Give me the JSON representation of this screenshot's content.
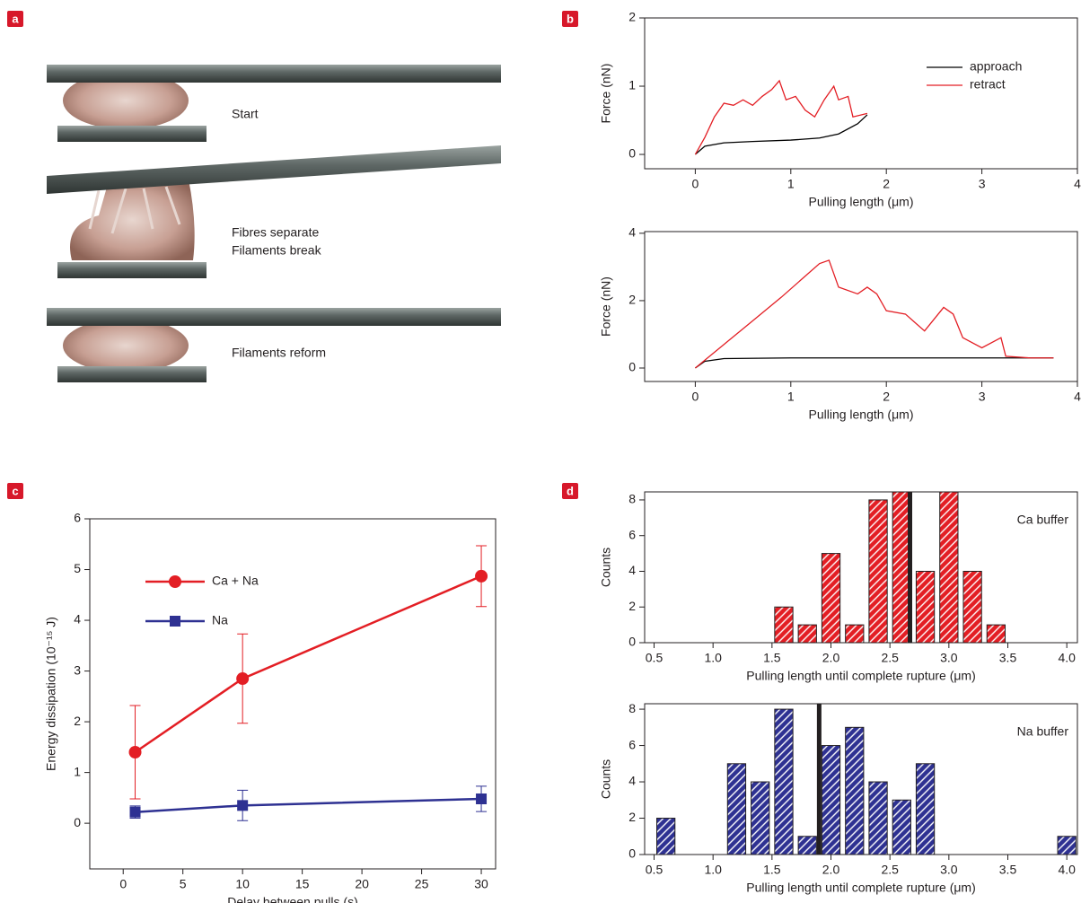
{
  "panels": [
    "a",
    "b",
    "c",
    "d"
  ],
  "diagram": {
    "captions": [
      "Start",
      "Fibres separate",
      "Filaments break",
      "Filaments reform"
    ]
  },
  "chart_data": [
    {
      "type": "line",
      "xlabel": "Pulling length (μm)",
      "ylabel": "Force (nN)",
      "xlim": [
        -0.53,
        4
      ],
      "xticks": [
        0,
        1,
        2,
        3,
        4
      ],
      "ylim": [
        -0.21,
        2
      ],
      "yticks": [
        0,
        1,
        2
      ],
      "legend": "upper right",
      "series": [
        {
          "name": "approach",
          "color": "#000000",
          "x": [
            0,
            0.1,
            0.3,
            0.6,
            1.0,
            1.3,
            1.5,
            1.7,
            1.8
          ],
          "values": [
            0,
            0.12,
            0.17,
            0.19,
            0.21,
            0.24,
            0.3,
            0.45,
            0.58
          ]
        },
        {
          "name": "retract",
          "color": "#e31e24",
          "x": [
            0,
            0.1,
            0.2,
            0.3,
            0.4,
            0.5,
            0.6,
            0.7,
            0.8,
            0.88,
            0.95,
            1.05,
            1.15,
            1.25,
            1.35,
            1.45,
            1.5,
            1.6,
            1.65,
            1.8
          ],
          "values": [
            0,
            0.25,
            0.55,
            0.75,
            0.72,
            0.8,
            0.72,
            0.85,
            0.95,
            1.08,
            0.8,
            0.85,
            0.65,
            0.55,
            0.8,
            1.0,
            0.8,
            0.85,
            0.55,
            0.6
          ]
        }
      ]
    },
    {
      "type": "line",
      "xlabel": "Pulling length (μm)",
      "ylabel": "Force (nN)",
      "xlim": [
        -0.53,
        4
      ],
      "xticks": [
        0,
        1,
        2,
        3,
        4
      ],
      "ylim": [
        -0.4,
        4.05
      ],
      "yticks": [
        0,
        2,
        4
      ],
      "series": [
        {
          "color": "#000000",
          "x": [
            0,
            0.1,
            0.3,
            1,
            2,
            3,
            3.5,
            3.75
          ],
          "values": [
            0,
            0.2,
            0.28,
            0.3,
            0.3,
            0.3,
            0.3,
            0.3
          ]
        },
        {
          "color": "#e31e24",
          "x": [
            0,
            0.3,
            0.6,
            0.9,
            1.1,
            1.3,
            1.4,
            1.5,
            1.7,
            1.8,
            1.9,
            2.0,
            2.2,
            2.4,
            2.6,
            2.7,
            2.8,
            3.0,
            3.2,
            3.25,
            3.5,
            3.75
          ],
          "values": [
            0,
            0.7,
            1.4,
            2.1,
            2.6,
            3.1,
            3.2,
            2.4,
            2.2,
            2.4,
            2.2,
            1.7,
            1.6,
            1.1,
            1.8,
            1.6,
            0.9,
            0.6,
            0.9,
            0.35,
            0.3,
            0.3
          ]
        }
      ]
    },
    {
      "type": "line",
      "xlabel": "Delay between pulls (s)",
      "ylabel": "Energy dissipation (10⁻¹⁵ J)",
      "xlim": [
        -2.8,
        31.2
      ],
      "xticks": [
        0,
        5,
        10,
        15,
        20,
        25,
        30
      ],
      "ylim": [
        -0.9,
        6
      ],
      "yticks": [
        0,
        1,
        2,
        3,
        4,
        5,
        6
      ],
      "legend": "upper left",
      "series": [
        {
          "name": "Ca + Na",
          "color": "#e31e24",
          "marker": "circle",
          "x": [
            1,
            10,
            30
          ],
          "values": [
            1.4,
            2.85,
            4.87
          ],
          "errors": [
            0.92,
            0.88,
            0.6
          ]
        },
        {
          "name": "Na",
          "color": "#2e3192",
          "marker": "square",
          "x": [
            1,
            10,
            30
          ],
          "values": [
            0.22,
            0.35,
            0.48
          ],
          "errors": [
            0.12,
            0.3,
            0.25
          ]
        }
      ]
    },
    {
      "type": "histogram",
      "xlabel": "Pulling length until complete rupture (μm)",
      "ylabel": "Counts",
      "annotation": "Ca buffer",
      "color": "#e31e24",
      "bins": [
        1.5,
        1.7,
        1.9,
        2.1,
        2.3,
        2.5,
        2.7,
        2.9,
        3.1,
        3.3,
        3.5
      ],
      "counts": [
        2,
        1,
        5,
        1,
        8,
        9,
        4,
        9,
        4,
        1
      ],
      "marker_line": 2.67,
      "xlim": [
        0.42,
        4.09
      ],
      "xticks": [
        {
          "value": 0.5,
          "label": "0.5"
        },
        {
          "value": 1,
          "label": "1.0"
        },
        {
          "value": 1.5,
          "label": "1.5"
        },
        {
          "value": 2,
          "label": "2.0"
        },
        {
          "value": 2.5,
          "label": "2.5"
        },
        {
          "value": 3,
          "label": "3.0"
        },
        {
          "value": 3.5,
          "label": "3.5"
        },
        {
          "value": 4,
          "label": "4.0"
        }
      ],
      "ylim": [
        0,
        8.45
      ],
      "yticks": [
        0,
        2,
        4,
        6,
        8
      ]
    },
    {
      "type": "histogram",
      "xlabel": "Pulling length until complete rupture (μm)",
      "ylabel": "Counts",
      "annotation": "Na buffer",
      "color": "#2e3192",
      "bins": [
        0.5,
        0.7,
        0.9,
        1.1,
        1.3,
        1.5,
        1.7,
        1.9,
        2.1,
        2.3,
        2.5,
        2.7,
        2.9,
        3.1,
        3.3,
        3.5,
        3.7,
        3.9,
        4.1
      ],
      "counts": [
        2,
        0,
        0,
        5,
        4,
        8,
        1,
        6,
        7,
        4,
        3,
        5,
        0,
        0,
        0,
        0,
        0,
        1
      ],
      "marker_line": 1.9,
      "xlim": [
        0.42,
        4.09
      ],
      "xticks": [
        {
          "value": 0.5,
          "label": "0.5"
        },
        {
          "value": 1,
          "label": "1.0"
        },
        {
          "value": 1.5,
          "label": "1.5"
        },
        {
          "value": 2,
          "label": "2.0"
        },
        {
          "value": 2.5,
          "label": "2.5"
        },
        {
          "value": 3,
          "label": "3.0"
        },
        {
          "value": 3.5,
          "label": "3.5"
        },
        {
          "value": 4,
          "label": "4.0"
        }
      ],
      "ylim": [
        0,
        8.3
      ],
      "yticks": [
        0,
        2,
        4,
        6,
        8
      ]
    }
  ]
}
